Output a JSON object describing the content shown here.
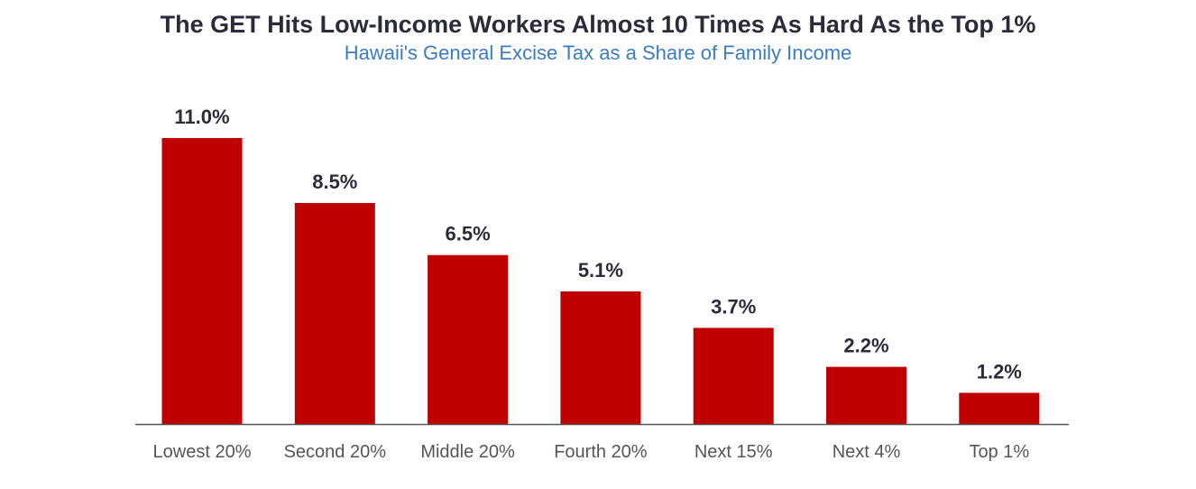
{
  "chart_data": {
    "type": "bar",
    "title": "The GET Hits Low-Income Workers Almost 10 Times As Hard As the Top 1%",
    "subtitle": "Hawaii's General Excise Tax as a Share of Family Income",
    "categories": [
      "Lowest 20%",
      "Second 20%",
      "Middle 20%",
      "Fourth 20%",
      "Next 15%",
      "Next 4%",
      "Top 1%"
    ],
    "values": [
      11.0,
      8.5,
      6.5,
      5.1,
      3.7,
      2.2,
      1.2
    ],
    "value_labels": [
      "11.0%",
      "8.5%",
      "6.5%",
      "5.1%",
      "3.7%",
      "2.2%",
      "1.2%"
    ],
    "ylim": [
      0,
      11
    ],
    "grid": false,
    "bar_color": "#c00000",
    "axis_color": "#555555",
    "title_color": "#2b2b3b",
    "subtitle_color": "#3a7cc4"
  }
}
